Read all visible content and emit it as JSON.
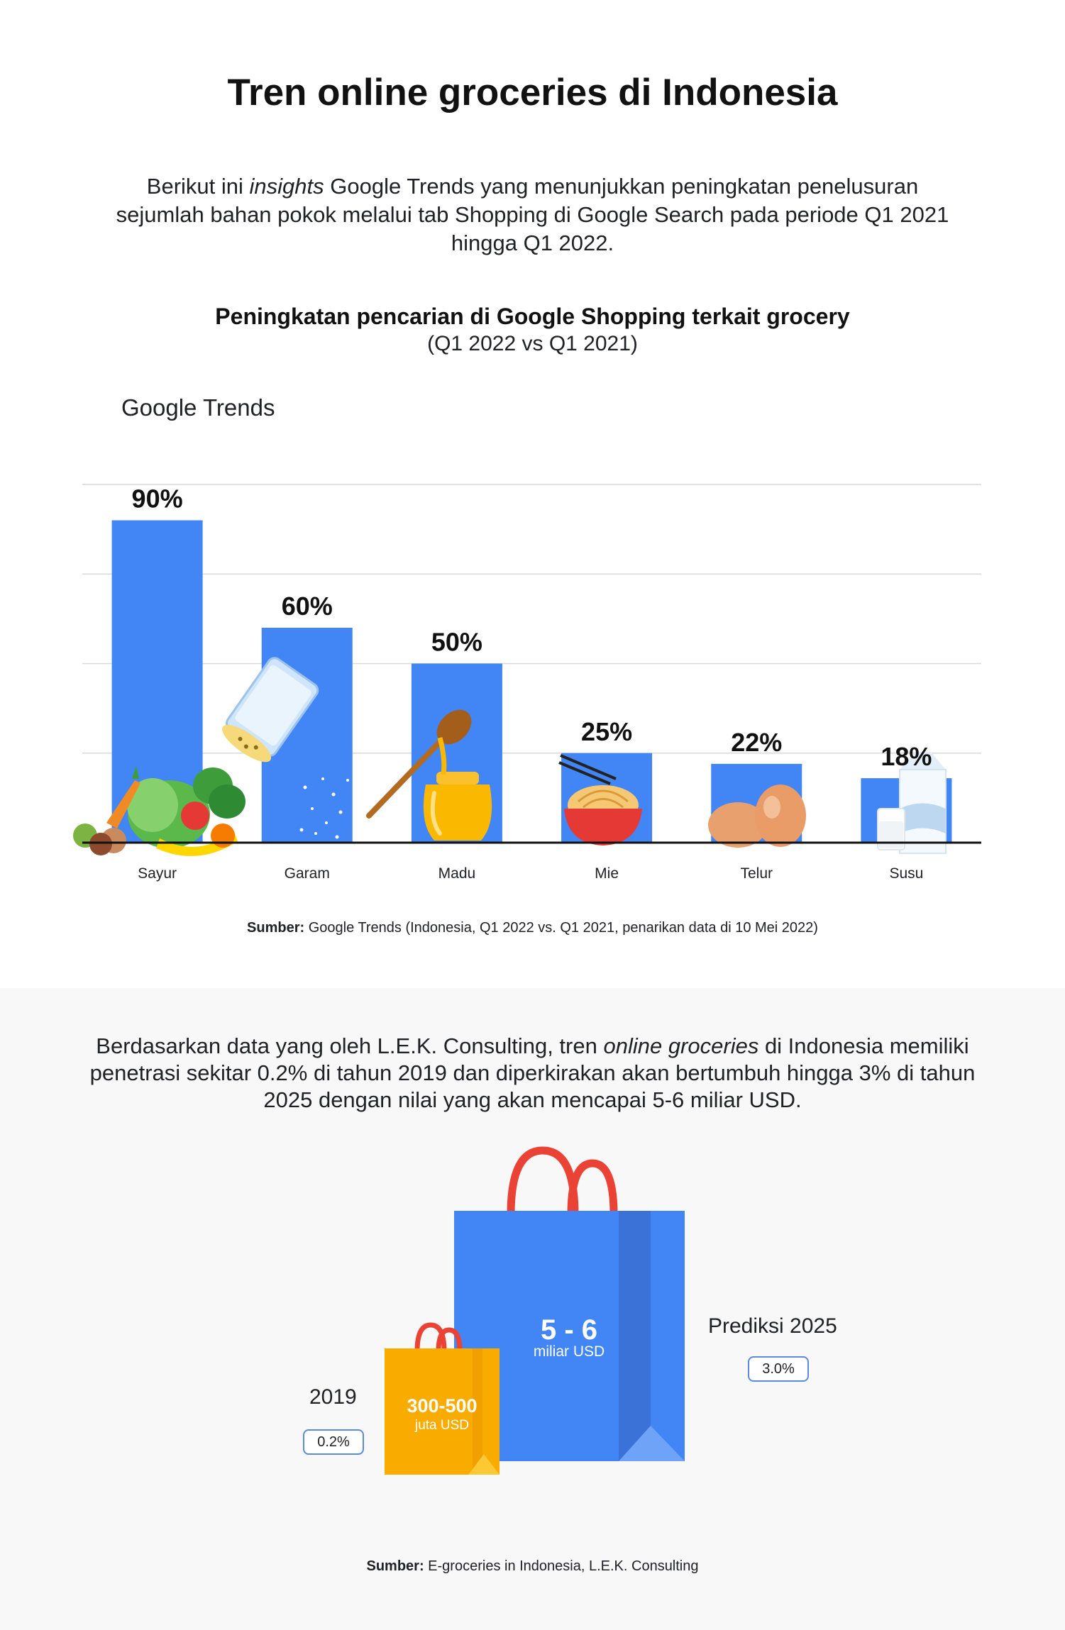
{
  "title": "Tren online groceries di Indonesia",
  "intro": {
    "prefix": "Berikut ini ",
    "emphasis": "insights",
    "suffix": " Google Trends yang menunjukkan peningkatan penelusuran sejumlah bahan pokok melalui tab Shopping di Google Search pada periode Q1 2021 hingga Q1 2022."
  },
  "chart_data": {
    "type": "bar",
    "title": "Peningkatan pencarian di Google Shopping terkait grocery",
    "subtitle": "(Q1 2022 vs Q1 2021)",
    "brand": "Google Trends",
    "categories": [
      "Sayur",
      "Garam",
      "Madu",
      "Mie",
      "Telur",
      "Susu"
    ],
    "values": [
      90,
      60,
      50,
      25,
      22,
      18
    ],
    "value_labels": [
      "90%",
      "60%",
      "50%",
      "25%",
      "22%",
      "18%"
    ],
    "ylim": [
      0,
      100
    ],
    "grid": true,
    "bar_color": "#4285f4"
  },
  "source1": {
    "label": "Sumber:",
    "text": " Google Trends (Indonesia, Q1 2022 vs. Q1 2021, penarikan data di 10 Mei 2022)"
  },
  "para2": {
    "prefix": "Berdasarkan data yang oleh L.E.K. Consulting, tren ",
    "emphasis": "online groceries",
    "suffix": " di Indonesia memiliki penetrasi sekitar 0.2% di tahun 2019 dan diperkirakan akan bertumbuh hingga 3% di tahun 2025 dengan nilai yang akan mencapai 5-6 miliar USD."
  },
  "bags": {
    "small": {
      "year": "2019",
      "value": "300-500",
      "unit": "juta USD",
      "penetration": "0.2%",
      "color": "#f9ab00"
    },
    "large": {
      "year": "Prediksi 2025",
      "value": "5 - 6",
      "unit": "miliar USD",
      "penetration": "3.0%",
      "color": "#4285f4"
    },
    "handle_color": "#ea4335"
  },
  "source2": {
    "label": "Sumber:",
    "text": " E-groceries in Indonesia, L.E.K. Consulting"
  }
}
